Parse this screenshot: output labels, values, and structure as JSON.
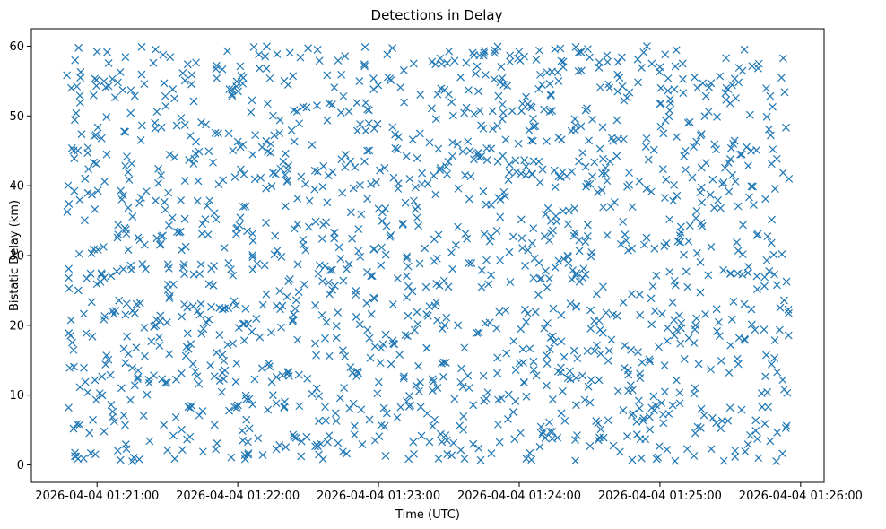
{
  "chart_data": {
    "type": "scatter",
    "title": "Detections in Delay",
    "xlabel": "Time (UTC)",
    "ylabel": "Bistatic Delay (km)",
    "x_range": [
      "2026-04-04 01:20:47",
      "2026-04-04 01:25:55"
    ],
    "xlim": [
      "2026-04-04 01:20:32",
      "2026-04-04 01:26:10"
    ],
    "ylim": [
      -2.5,
      62.5
    ],
    "x_ticks": [
      "2026-04-04 01:21:00",
      "2026-04-04 01:22:00",
      "2026-04-04 01:23:00",
      "2026-04-04 01:24:00",
      "2026-04-04 01:25:00",
      "2026-04-04 01:26:00"
    ],
    "y_ticks": [
      "0",
      "10",
      "20",
      "30",
      "40",
      "50",
      "60"
    ],
    "y_range": [
      0.5,
      60
    ],
    "point_count": 1600,
    "marker": "x",
    "grid": false,
    "series_color": "#1f77b4",
    "series": [
      {
        "points": [
          [
            "2026-04-04 01:20:48",
            37.4
          ],
          [
            "2026-04-04 01:20:49",
            54.0
          ],
          [
            "2026-04-04 01:20:50",
            5.2
          ],
          [
            "2026-04-04 01:20:51",
            1.2
          ],
          [
            "2026-04-04 01:20:52",
            25.0
          ],
          [
            "2026-04-04 01:20:53",
            56.3
          ],
          [
            "2026-04-04 01:20:55",
            11.9
          ],
          [
            "2026-04-04 01:20:56",
            44.7
          ],
          [
            "2026-04-04 01:20:58",
            18.4
          ],
          [
            "2026-04-04 01:21:00",
            59.2
          ],
          [
            "2026-04-04 01:21:03",
            26.8
          ],
          [
            "2026-04-04 01:21:06",
            8.6
          ],
          [
            "2026-04-04 01:21:09",
            33.0
          ],
          [
            "2026-04-04 01:21:12",
            47.7
          ],
          [
            "2026-04-04 01:21:15",
            13.9
          ],
          [
            "2026-04-04 01:21:18",
            0.8
          ],
          [
            "2026-04-04 01:21:21",
            39.2
          ],
          [
            "2026-04-04 01:21:24",
            57.6
          ],
          [
            "2026-04-04 01:21:27",
            21.4
          ],
          [
            "2026-04-04 01:21:30",
            2.1
          ],
          [
            "2026-04-04 01:21:33",
            52.5
          ],
          [
            "2026-04-04 01:21:36",
            30.8
          ],
          [
            "2026-04-04 01:21:39",
            16.6
          ],
          [
            "2026-04-04 01:21:42",
            44.6
          ],
          [
            "2026-04-04 01:21:45",
            7.7
          ],
          [
            "2026-04-04 01:21:48",
            37.9
          ],
          [
            "2026-04-04 01:21:51",
            55.4
          ],
          [
            "2026-04-04 01:21:54",
            12.3
          ],
          [
            "2026-04-04 01:21:57",
            28.0
          ],
          [
            "2026-04-04 01:22:00",
            46.3
          ],
          [
            "2026-04-04 01:22:03",
            1.4
          ],
          [
            "2026-04-04 01:22:06",
            19.1
          ],
          [
            "2026-04-04 01:22:09",
            58.8
          ],
          [
            "2026-04-04 01:22:12",
            34.7
          ],
          [
            "2026-04-04 01:22:15",
            10.0
          ],
          [
            "2026-04-04 01:22:18",
            49.4
          ],
          [
            "2026-04-04 01:22:21",
            24.1
          ],
          [
            "2026-04-04 01:22:24",
            4.0
          ],
          [
            "2026-04-04 01:22:27",
            41.3
          ],
          [
            "2026-04-04 01:22:30",
            59.7
          ],
          [
            "2026-04-04 01:22:33",
            17.4
          ],
          [
            "2026-04-04 01:22:36",
            32.4
          ],
          [
            "2026-04-04 01:22:39",
            51.8
          ],
          [
            "2026-04-04 01:22:42",
            6.3
          ],
          [
            "2026-04-04 01:22:45",
            26.4
          ],
          [
            "2026-04-04 01:22:48",
            43.5
          ],
          [
            "2026-04-04 01:22:51",
            13.4
          ],
          [
            "2026-04-04 01:22:54",
            57.4
          ],
          [
            "2026-04-04 01:22:57",
            21.6
          ],
          [
            "2026-04-04 01:23:00",
            36.7
          ],
          [
            "2026-04-04 01:23:03",
            1.3
          ],
          [
            "2026-04-04 01:23:06",
            48.4
          ],
          [
            "2026-04-04 01:23:09",
            15.8
          ],
          [
            "2026-04-04 01:23:12",
            29.6
          ],
          [
            "2026-04-04 01:23:15",
            57.5
          ],
          [
            "2026-04-04 01:23:18",
            8.3
          ],
          [
            "2026-04-04 01:23:21",
            40.3
          ],
          [
            "2026-04-04 01:23:24",
            22.8
          ],
          [
            "2026-04-04 01:23:27",
            3.3
          ],
          [
            "2026-04-04 01:23:30",
            53.1
          ],
          [
            "2026-04-04 01:23:33",
            31.5
          ],
          [
            "2026-04-04 01:23:36",
            11.2
          ],
          [
            "2026-04-04 01:23:39",
            45.0
          ],
          [
            "2026-04-04 01:23:42",
            18.9
          ],
          [
            "2026-04-04 01:23:45",
            59.0
          ],
          [
            "2026-04-04 01:23:48",
            27.2
          ],
          [
            "2026-04-04 01:23:51",
            5.8
          ],
          [
            "2026-04-04 01:23:54",
            38.5
          ],
          [
            "2026-04-04 01:23:57",
            50.7
          ],
          [
            "2026-04-04 01:24:00",
            14.6
          ],
          [
            "2026-04-04 01:24:03",
            0.9
          ],
          [
            "2026-04-04 01:24:06",
            33.9
          ],
          [
            "2026-04-04 01:24:09",
            55.9
          ],
          [
            "2026-04-04 01:24:12",
            20.3
          ],
          [
            "2026-04-04 01:24:15",
            42.2
          ],
          [
            "2026-04-04 01:24:18",
            7.4
          ],
          [
            "2026-04-04 01:24:21",
            28.9
          ],
          [
            "2026-04-04 01:24:24",
            47.9
          ],
          [
            "2026-04-04 01:24:27",
            12.8
          ],
          [
            "2026-04-04 01:24:30",
            58.4
          ],
          [
            "2026-04-04 01:24:33",
            24.5
          ],
          [
            "2026-04-04 01:24:36",
            3.9
          ],
          [
            "2026-04-04 01:24:39",
            37.0
          ],
          [
            "2026-04-04 01:24:42",
            53.5
          ],
          [
            "2026-04-04 01:24:45",
            17.1
          ],
          [
            "2026-04-04 01:24:48",
            31.0
          ],
          [
            "2026-04-04 01:24:51",
            9.2
          ],
          [
            "2026-04-04 01:24:54",
            45.6
          ],
          [
            "2026-04-04 01:24:57",
            25.6
          ],
          [
            "2026-04-04 01:25:00",
            57.0
          ],
          [
            "2026-04-04 01:25:03",
            2.2
          ],
          [
            "2026-04-04 01:25:06",
            40.1
          ],
          [
            "2026-04-04 01:25:09",
            19.6
          ],
          [
            "2026-04-04 01:25:12",
            49.0
          ],
          [
            "2026-04-04 01:25:15",
            11.0
          ],
          [
            "2026-04-04 01:25:18",
            34.2
          ],
          [
            "2026-04-04 01:25:21",
            54.1
          ],
          [
            "2026-04-04 01:25:24",
            6.0
          ],
          [
            "2026-04-04 01:25:27",
            27.9
          ],
          [
            "2026-04-04 01:25:30",
            43.8
          ],
          [
            "2026-04-04 01:25:33",
            15.2
          ],
          [
            "2026-04-04 01:25:36",
            59.5
          ],
          [
            "2026-04-04 01:25:39",
            22.3
          ],
          [
            "2026-04-04 01:25:42",
            1.0
          ],
          [
            "2026-04-04 01:25:45",
            38.1
          ],
          [
            "2026-04-04 01:25:48",
            51.3
          ],
          [
            "2026-04-04 01:25:50",
            13.3
          ],
          [
            "2026-04-04 01:25:52",
            30.2
          ],
          [
            "2026-04-04 01:25:54",
            5.6
          ],
          [
            "2026-04-04 01:25:55",
            41.0
          ]
        ]
      }
    ]
  }
}
